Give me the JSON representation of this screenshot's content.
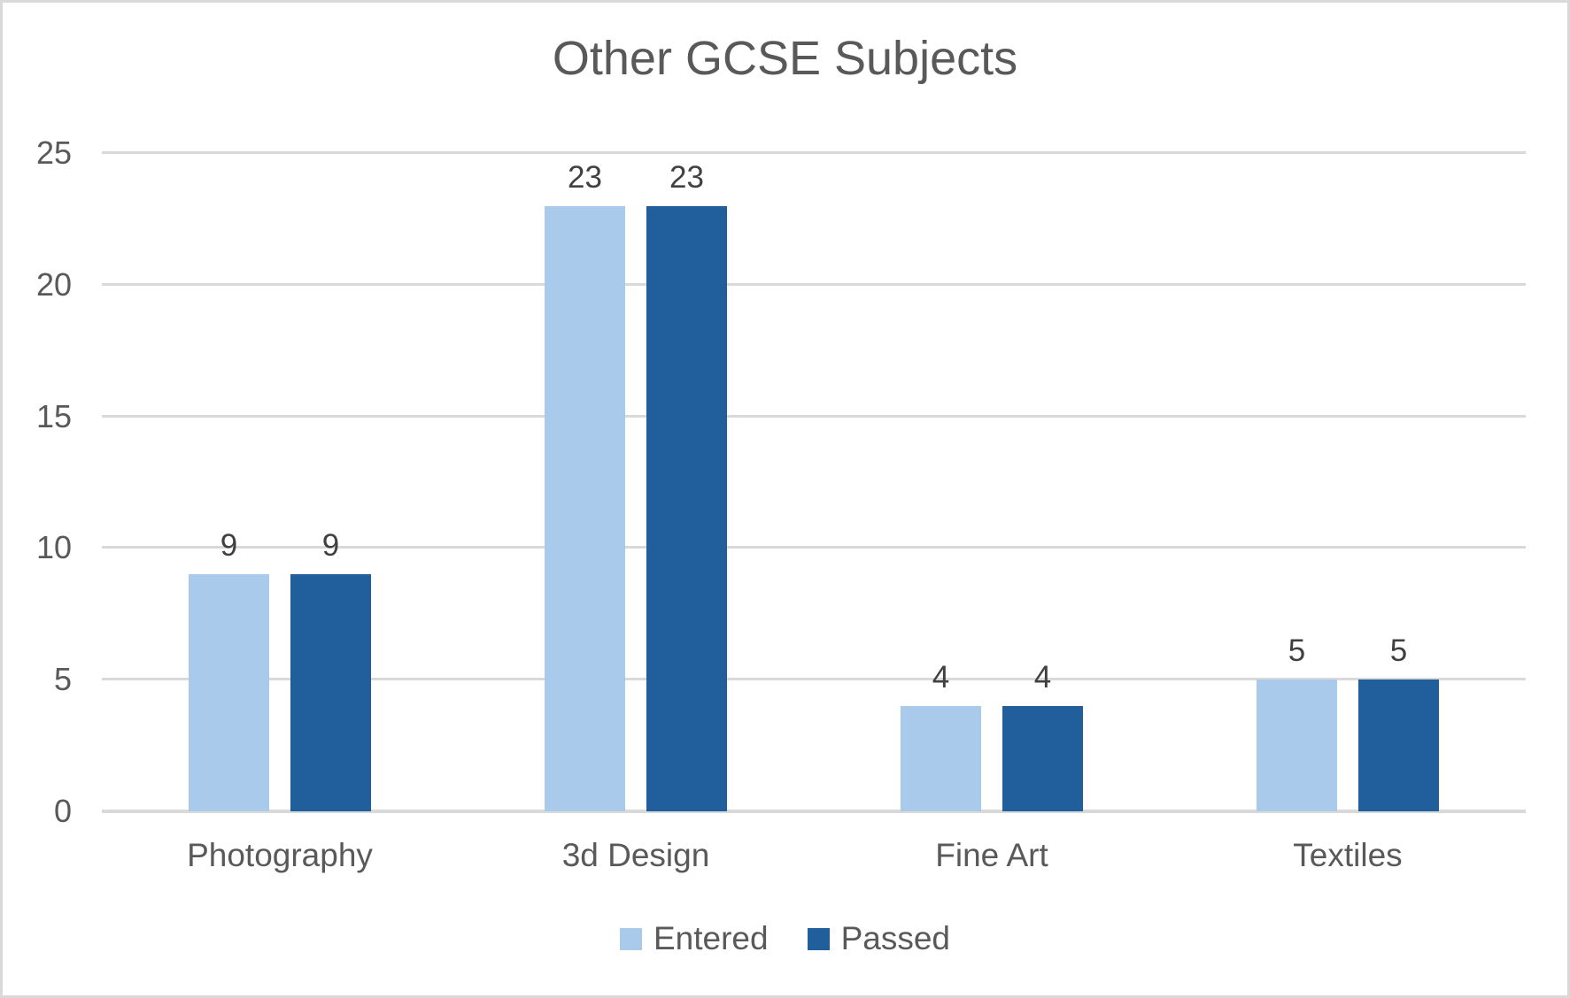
{
  "chart_data": {
    "type": "bar",
    "title": "Other GCSE Subjects",
    "categories": [
      "Photography",
      "3d Design",
      "Fine Art",
      "Textiles"
    ],
    "series": [
      {
        "name": "Entered",
        "color": "#A9CAEB",
        "values": [
          9,
          23,
          4,
          5
        ]
      },
      {
        "name": "Passed",
        "color": "#215E9C",
        "values": [
          9,
          23,
          4,
          5
        ]
      }
    ],
    "ylim": [
      0,
      25
    ],
    "yticks": [
      0,
      5,
      10,
      15,
      20,
      25
    ],
    "grid": true,
    "data_labels": true,
    "legend_position": "bottom",
    "xlabel": "",
    "ylabel": "",
    "colors": {
      "title_text": "#595959",
      "tick_label_text": "#595959",
      "category_label_text": "#595959",
      "data_label_text": "#404040",
      "legend_text": "#595959",
      "gridline": "#D9D9D9",
      "axis_line": "#D9D9D9",
      "frame_border": "#D9D9D9",
      "background": "#FFFFFF"
    }
  }
}
